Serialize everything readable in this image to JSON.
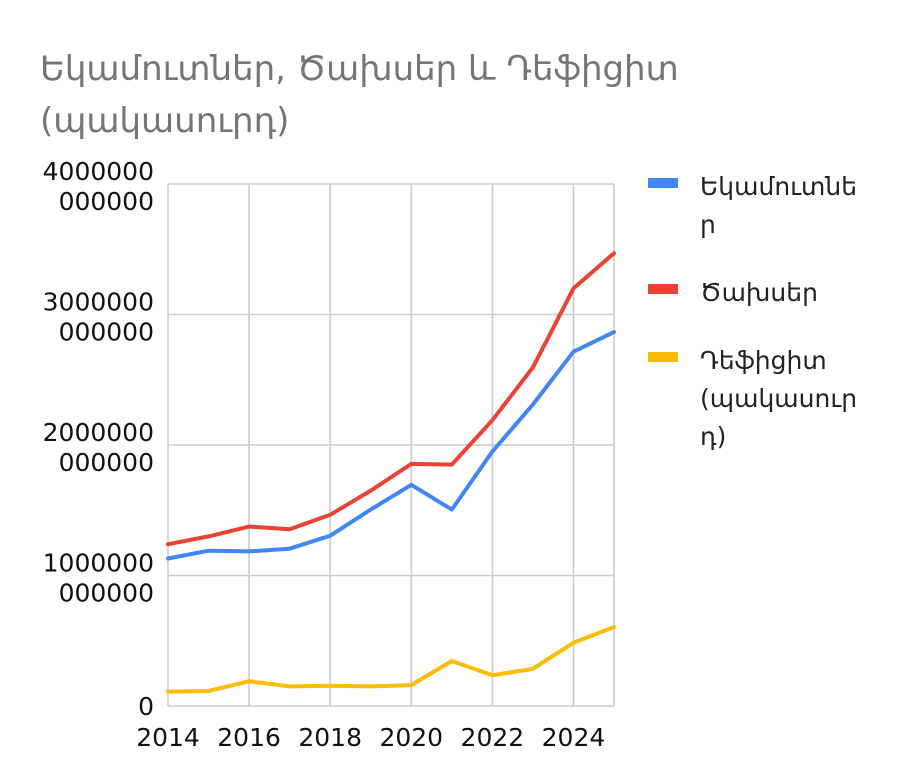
{
  "chart_data": {
    "type": "line",
    "title_lines": [
      "Եկամուտներ, Ծախսեր և Դեֆիցիտ",
      "(պակասուրդ)"
    ],
    "x": [
      2014,
      2015,
      2016,
      2017,
      2018,
      2019,
      2020,
      2021,
      2022,
      2023,
      2024,
      2025
    ],
    "x_ticks": [
      "2014",
      "2016",
      "2018",
      "2020",
      "2022",
      "2024"
    ],
    "y_ticks": [
      {
        "value": 0,
        "lines": [
          "0"
        ]
      },
      {
        "value": 1000000000000,
        "lines": [
          "1000000",
          "000000"
        ]
      },
      {
        "value": 2000000000000,
        "lines": [
          "2000000",
          "000000"
        ]
      },
      {
        "value": 3000000000000,
        "lines": [
          "3000000",
          "000000"
        ]
      },
      {
        "value": 4000000000000,
        "lines": [
          "4000000",
          "000000"
        ]
      }
    ],
    "xlim": [
      2014,
      2025
    ],
    "ylim": [
      0,
      4000000000000
    ],
    "grid": true,
    "legend_position": "right",
    "series": [
      {
        "name_lines": [
          "Եկամուտնե",
          "ր"
        ],
        "color": "#4285f4",
        "values": [
          1130000000000,
          1190000000000,
          1185000000000,
          1205000000000,
          1305000000000,
          1505000000000,
          1695000000000,
          1505000000000,
          1950000000000,
          2310000000000,
          2715000000000,
          2865000000000
        ]
      },
      {
        "name_lines": [
          "Ծախսեր"
        ],
        "color": "#ea4335",
        "values": [
          1240000000000,
          1300000000000,
          1375000000000,
          1355000000000,
          1465000000000,
          1650000000000,
          1855000000000,
          1850000000000,
          2190000000000,
          2595000000000,
          3200000000000,
          3470000000000
        ]
      },
      {
        "name_lines": [
          "Դեֆիցիտ",
          "(պակասուր",
          "դ)"
        ],
        "color": "#fbbc04",
        "values": [
          110000000000,
          115000000000,
          190000000000,
          150000000000,
          155000000000,
          150000000000,
          160000000000,
          345000000000,
          235000000000,
          285000000000,
          485000000000,
          605000000000
        ]
      }
    ]
  }
}
